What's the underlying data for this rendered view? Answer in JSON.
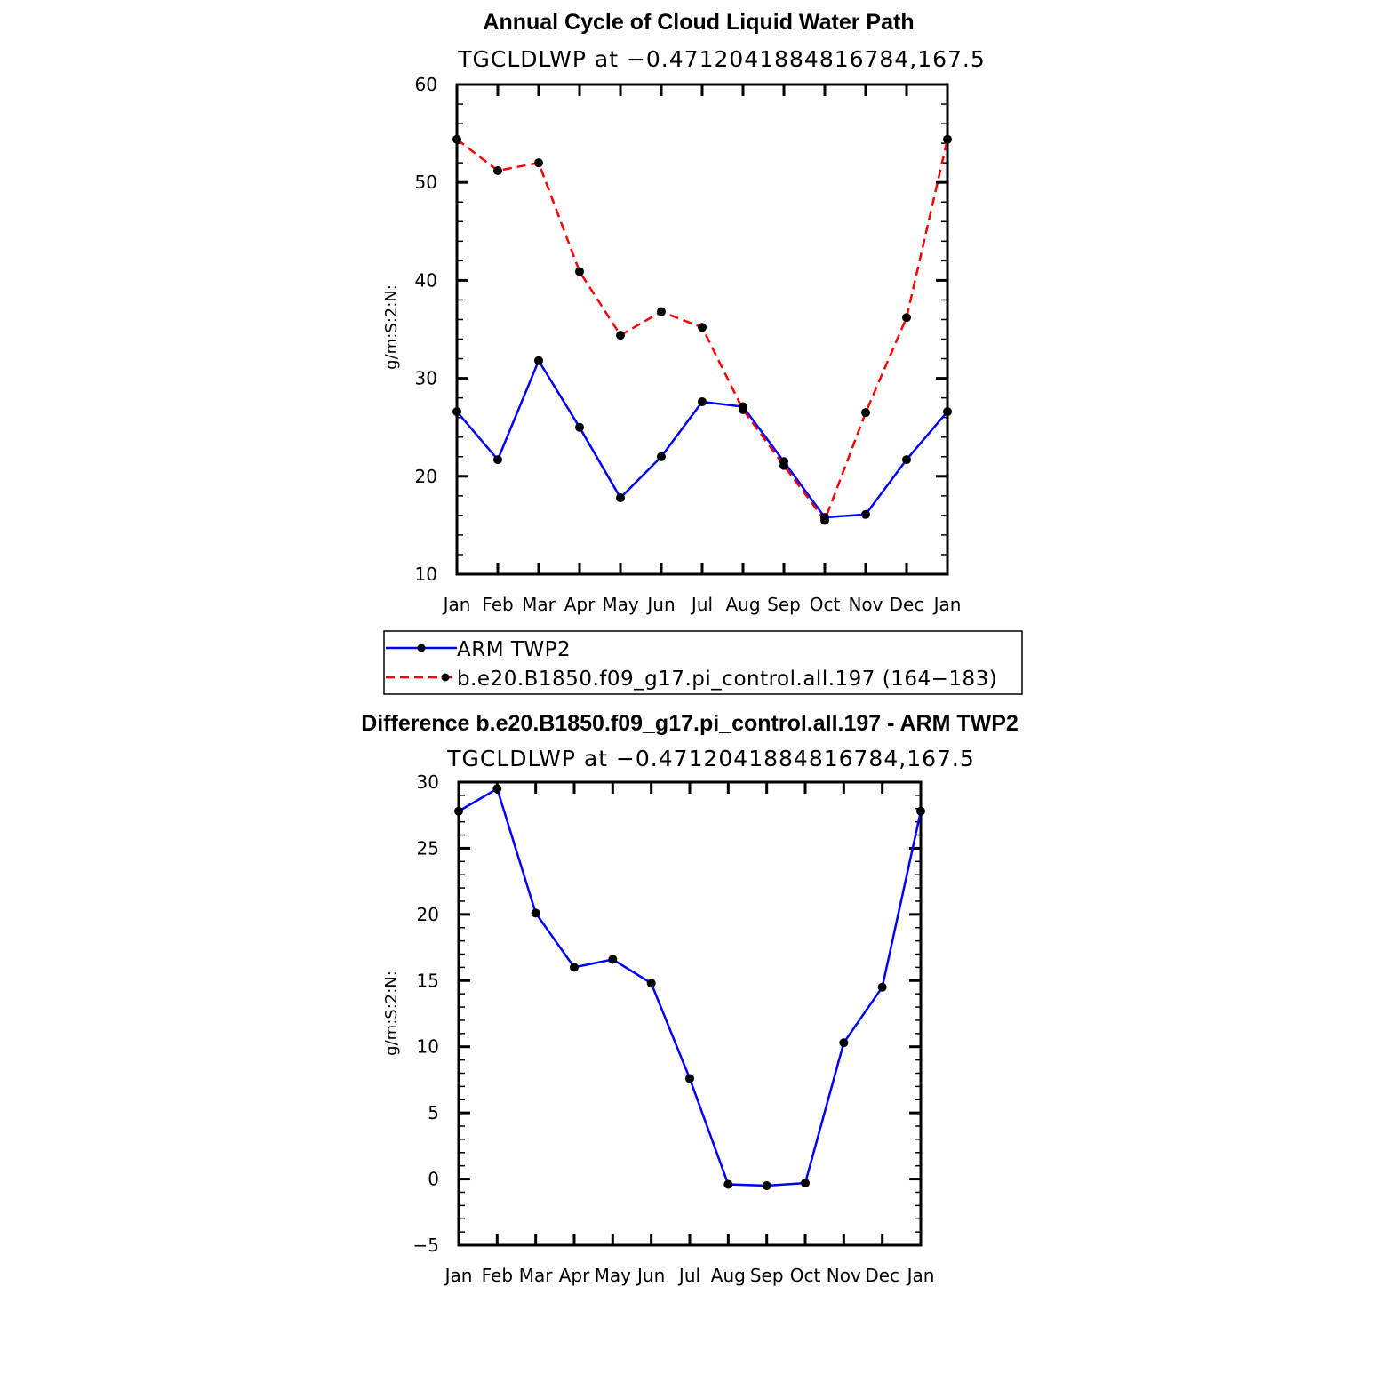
{
  "chart_data": [
    {
      "type": "line",
      "title": "Annual Cycle of Cloud Liquid Water Path",
      "subtitle": "TGCLDLWP at −0.4712041884816784,167.5",
      "xlabel": "",
      "ylabel": "g/m:S:2:N:",
      "categories": [
        "Jan",
        "Feb",
        "Mar",
        "Apr",
        "May",
        "Jun",
        "Jul",
        "Aug",
        "Sep",
        "Oct",
        "Nov",
        "Dec",
        "Jan"
      ],
      "ylim": [
        10,
        60
      ],
      "yticks": [
        "10",
        "20",
        "30",
        "40",
        "50",
        "60"
      ],
      "series": [
        {
          "name": "ARM TWP2",
          "color": "#0000ff",
          "dash": "solid",
          "values": [
            26.6,
            21.7,
            31.8,
            25.0,
            17.8,
            22.0,
            27.6,
            27.1,
            21.5,
            15.8,
            16.1,
            21.7,
            26.6
          ]
        },
        {
          "name": "b.e20.B1850.f09_g17.pi_control.all.197 (164−183)",
          "color": "#ff0000",
          "dash": "dashed",
          "values": [
            54.4,
            51.2,
            52.0,
            40.9,
            34.4,
            36.8,
            35.2,
            26.8,
            21.1,
            15.5,
            26.5,
            36.2,
            54.4
          ]
        }
      ],
      "legend_position": "below"
    },
    {
      "type": "line",
      "title": "Difference b.e20.B1850.f09_g17.pi_control.all.197 - ARM TWP2",
      "subtitle": "TGCLDLWP at −0.4712041884816784,167.5",
      "xlabel": "",
      "ylabel": "g/m:S:2:N:",
      "categories": [
        "Jan",
        "Feb",
        "Mar",
        "Apr",
        "May",
        "Jun",
        "Jul",
        "Aug",
        "Sep",
        "Oct",
        "Nov",
        "Dec",
        "Jan"
      ],
      "ylim": [
        -5,
        30
      ],
      "yticks": [
        "−5",
        "0",
        "5",
        "10",
        "15",
        "20",
        "25",
        "30"
      ],
      "series": [
        {
          "name": "Difference",
          "color": "#0000ff",
          "dash": "solid",
          "values": [
            27.8,
            29.5,
            20.1,
            16.0,
            16.6,
            14.8,
            7.6,
            -0.4,
            -0.5,
            -0.3,
            10.3,
            14.5,
            27.8
          ]
        }
      ]
    }
  ]
}
